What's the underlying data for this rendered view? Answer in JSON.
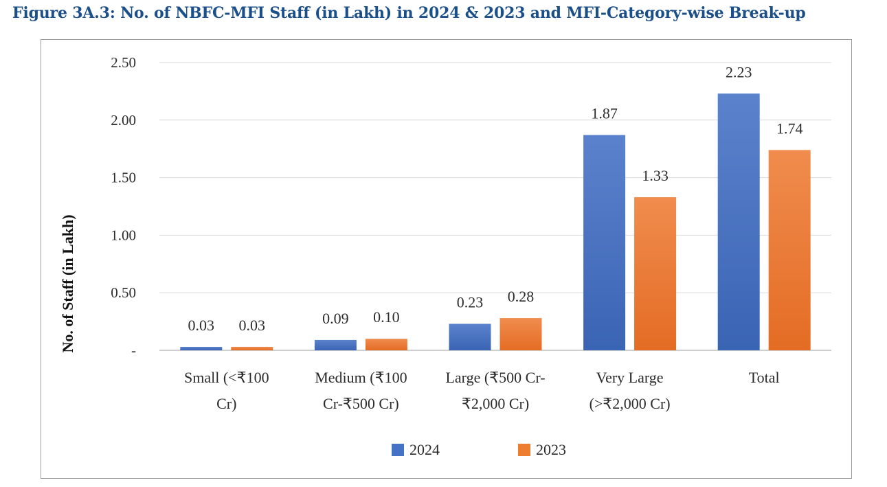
{
  "title": "Figure 3A.3:  No. of NBFC-MFI Staff (in Lakh) in 2024 & 2023 and MFI-Category-wise Break-up",
  "chart_data": {
    "type": "bar",
    "categories": [
      [
        "Small (<₹100",
        "Cr)"
      ],
      [
        "Medium (₹100",
        "Cr-₹500 Cr)"
      ],
      [
        "Large (₹500 Cr-",
        "₹2,000 Cr)"
      ],
      [
        "Very Large",
        "(>₹2,000 Cr)"
      ],
      [
        "Total"
      ]
    ],
    "series": [
      {
        "name": "2024",
        "values": [
          0.03,
          0.09,
          0.23,
          1.87,
          2.23
        ],
        "color": "#4472c4"
      },
      {
        "name": "2023",
        "values": [
          0.03,
          0.1,
          0.28,
          1.33,
          1.74
        ],
        "color": "#ed7d31"
      }
    ],
    "ylabel": "No. of Staff (in Lakh)",
    "ylim": [
      0,
      2.5
    ],
    "yticks": [
      "-",
      "0.50",
      "1.00",
      "1.50",
      "2.00",
      "2.50"
    ],
    "ytick_values": [
      0,
      0.5,
      1.0,
      1.5,
      2.0,
      2.5
    ],
    "grid": true,
    "legend_position": "bottom"
  }
}
